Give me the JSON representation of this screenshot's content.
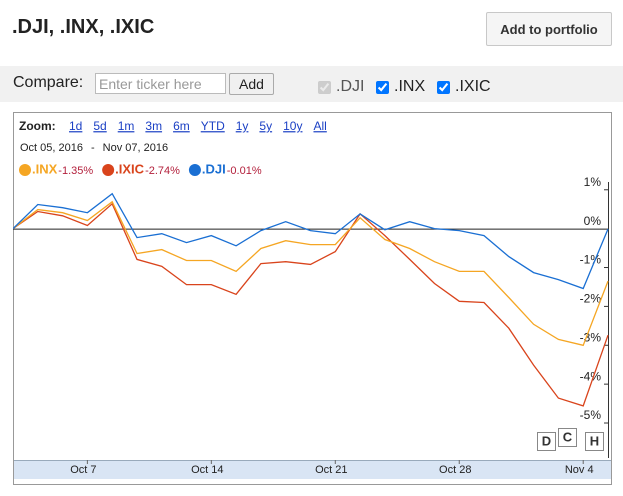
{
  "header": {
    "title": ".DJI, .INX, .IXIC",
    "button": "Add to portfolio"
  },
  "compare": {
    "label": "Compare:",
    "placeholder": "Enter ticker here",
    "button": "Add",
    "checkboxes": [
      {
        "label": ".DJI",
        "checked": true,
        "disabled": true
      },
      {
        "label": ".INX",
        "checked": true,
        "disabled": false
      },
      {
        "label": ".IXIC",
        "checked": true,
        "disabled": false
      }
    ]
  },
  "chart_data": {
    "type": "line",
    "zoom_label": "Zoom:",
    "zoom_options": [
      "1d",
      "5d",
      "1m",
      "3m",
      "6m",
      "YTD",
      "1y",
      "5y",
      "10y",
      "All"
    ],
    "date_start": "Oct 05, 2016",
    "date_separator": "-",
    "date_end": "Nov 07, 2016",
    "categories": [
      null,
      null,
      null,
      "Oct 7",
      null,
      null,
      null,
      null,
      "Oct 14",
      null,
      null,
      null,
      null,
      "Oct 21",
      null,
      null,
      null,
      null,
      "Oct 28",
      null,
      null,
      null,
      null,
      "Nov 4",
      null
    ],
    "series": [
      {
        "name": ".INX",
        "color": "#f5a623",
        "change_label": "-1.35%",
        "values": [
          0,
          0.49,
          0.41,
          0.21,
          0.69,
          -0.64,
          -0.54,
          -0.82,
          -0.82,
          -1.1,
          -0.51,
          -0.31,
          -0.41,
          -0.41,
          0.28,
          -0.28,
          -0.51,
          -0.85,
          -1.1,
          -1.1,
          -1.77,
          -2.46,
          -2.85,
          -3.0,
          -1.35
        ]
      },
      {
        "name": ".IXIC",
        "color": "#d9441c",
        "change_label": "-2.74%",
        "values": [
          0,
          0.44,
          0.33,
          0.08,
          0.64,
          -0.79,
          -0.97,
          -1.44,
          -1.44,
          -1.69,
          -0.9,
          -0.85,
          -0.92,
          -0.59,
          0.38,
          -0.18,
          -0.79,
          -1.41,
          -1.87,
          -1.9,
          -2.56,
          -3.51,
          -4.36,
          -4.56,
          -2.74
        ]
      },
      {
        "name": ".DJI",
        "color": "#1a6fd3",
        "change_label": "-0.01%",
        "values": [
          0,
          0.62,
          0.54,
          0.41,
          0.9,
          -0.23,
          -0.13,
          -0.36,
          -0.18,
          -0.44,
          -0.05,
          0.18,
          -0.05,
          -0.13,
          0.38,
          -0.03,
          0.18,
          0,
          -0.05,
          -0.18,
          -0.72,
          -1.13,
          -1.31,
          -1.54,
          -0.01
        ]
      }
    ],
    "ylim": [
      -5.9,
      1.2
    ],
    "yticks": [
      {
        "value": 1,
        "label": "1%"
      },
      {
        "value": 0,
        "label": "0%"
      },
      {
        "value": -1,
        "label": "-1%"
      },
      {
        "value": -2,
        "label": "-2%"
      },
      {
        "value": -3,
        "label": "-3%"
      },
      {
        "value": -4,
        "label": "-4%"
      },
      {
        "value": -5,
        "label": "-5%"
      }
    ],
    "grid": false,
    "buttons": [
      "D",
      "C",
      "H"
    ]
  }
}
